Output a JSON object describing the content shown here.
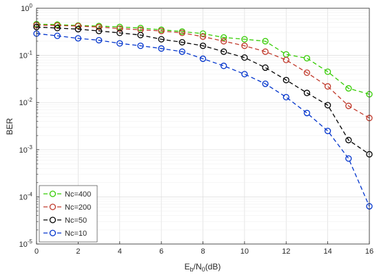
{
  "chart_data": {
    "type": "line",
    "xlabel": {
      "base": "E",
      "sub1": "b",
      "mid": "/N",
      "sub2": "0",
      "unit": "(dB)"
    },
    "ylabel": "BER",
    "xlim": [
      0,
      16
    ],
    "ylim": [
      1e-05,
      1
    ],
    "yscale": "log",
    "grid": true,
    "legend_placement": "bottom-left",
    "x_ticks": [
      "0",
      "2",
      "4",
      "6",
      "8",
      "10",
      "12",
      "14",
      "16"
    ],
    "y_ticks": [
      {
        "base": "10",
        "exp": "0"
      },
      {
        "base": "10",
        "exp": "-1"
      },
      {
        "base": "10",
        "exp": "-2"
      },
      {
        "base": "10",
        "exp": "-3"
      },
      {
        "base": "10",
        "exp": "-4"
      },
      {
        "base": "10",
        "exp": "-5"
      }
    ],
    "x": [
      0,
      1,
      2,
      3,
      4,
      5,
      6,
      7,
      8,
      9,
      10,
      11,
      12,
      13,
      14,
      15,
      16
    ],
    "series": [
      {
        "name": "Nc=400",
        "color": "#33cc00",
        "values": [
          0.46,
          0.45,
          0.43,
          0.42,
          0.4,
          0.38,
          0.35,
          0.32,
          0.29,
          0.24,
          0.22,
          0.2,
          0.105,
          0.087,
          0.045,
          0.02,
          0.015
        ]
      },
      {
        "name": "Nc=200",
        "color": "#c0392b",
        "values": [
          0.44,
          0.43,
          0.42,
          0.4,
          0.37,
          0.35,
          0.33,
          0.3,
          0.25,
          0.2,
          0.16,
          0.12,
          0.08,
          0.043,
          0.022,
          0.0085,
          0.0047
        ]
      },
      {
        "name": "Nc=50",
        "color": "#000000",
        "values": [
          0.4,
          0.38,
          0.36,
          0.33,
          0.3,
          0.27,
          0.22,
          0.19,
          0.16,
          0.12,
          0.09,
          0.055,
          0.03,
          0.016,
          0.0088,
          0.0016,
          0.0008
        ]
      },
      {
        "name": "Nc=10",
        "color": "#0033cc",
        "values": [
          0.29,
          0.26,
          0.23,
          0.21,
          0.18,
          0.16,
          0.14,
          0.12,
          0.085,
          0.06,
          0.04,
          0.025,
          0.013,
          0.006,
          0.0025,
          0.00065,
          6.3e-05
        ]
      }
    ]
  }
}
